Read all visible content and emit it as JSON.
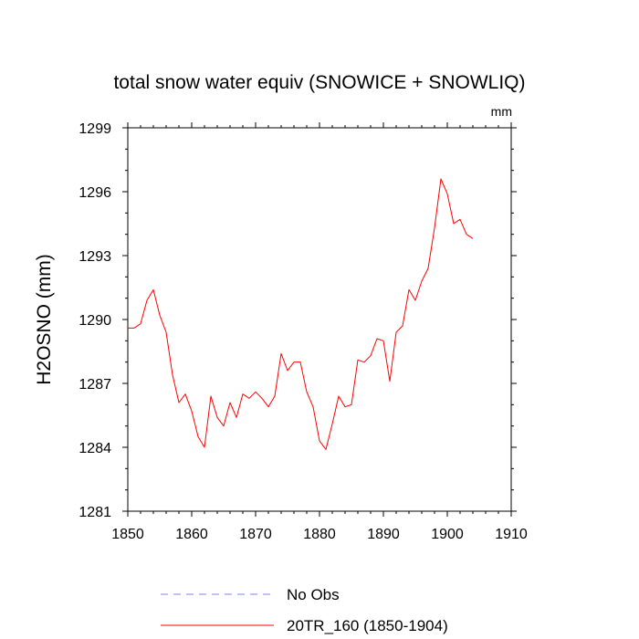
{
  "chart_data": {
    "type": "line",
    "title": "total snow water equiv (SNOWICE + SNOWLIQ)",
    "units_label": "mm",
    "xlabel": "",
    "ylabel": "H2OSNO  (mm)",
    "xlim": [
      1850,
      1910
    ],
    "ylim": [
      1281,
      1299
    ],
    "xticks": [
      1850,
      1860,
      1870,
      1880,
      1890,
      1900,
      1910
    ],
    "yticks": [
      1281,
      1284,
      1287,
      1290,
      1293,
      1296,
      1299
    ],
    "grid": false,
    "legend_position": "bottom",
    "series": [
      {
        "name": "No Obs",
        "color": "#8080ff",
        "dash": true,
        "x": [],
        "values": []
      },
      {
        "name": "20TR_160 (1850-1904)",
        "color": "#ff0000",
        "dash": false,
        "x": [
          1850,
          1851,
          1852,
          1853,
          1854,
          1855,
          1856,
          1857,
          1858,
          1859,
          1860,
          1861,
          1862,
          1863,
          1864,
          1865,
          1866,
          1867,
          1868,
          1869,
          1870,
          1871,
          1872,
          1873,
          1874,
          1875,
          1876,
          1877,
          1878,
          1879,
          1880,
          1881,
          1882,
          1883,
          1884,
          1885,
          1886,
          1887,
          1888,
          1889,
          1890,
          1891,
          1892,
          1893,
          1894,
          1895,
          1896,
          1897,
          1898,
          1899,
          1900,
          1901,
          1902,
          1903,
          1904
        ],
        "values": [
          1289.6,
          1289.6,
          1289.8,
          1290.9,
          1291.4,
          1290.2,
          1289.4,
          1287.4,
          1286.1,
          1286.5,
          1285.7,
          1284.5,
          1284.0,
          1286.4,
          1285.4,
          1285.0,
          1286.1,
          1285.4,
          1286.5,
          1286.3,
          1286.6,
          1286.3,
          1285.9,
          1286.4,
          1288.4,
          1287.6,
          1288.0,
          1288.0,
          1286.6,
          1285.9,
          1284.3,
          1283.9,
          1285.1,
          1286.4,
          1285.9,
          1286.0,
          1288.1,
          1288.0,
          1288.3,
          1289.1,
          1289.0,
          1287.1,
          1289.4,
          1289.7,
          1291.4,
          1290.9,
          1291.8,
          1292.4,
          1294.3,
          1296.6,
          1295.9,
          1294.5,
          1294.7,
          1294.0,
          1293.8
        ]
      }
    ]
  }
}
